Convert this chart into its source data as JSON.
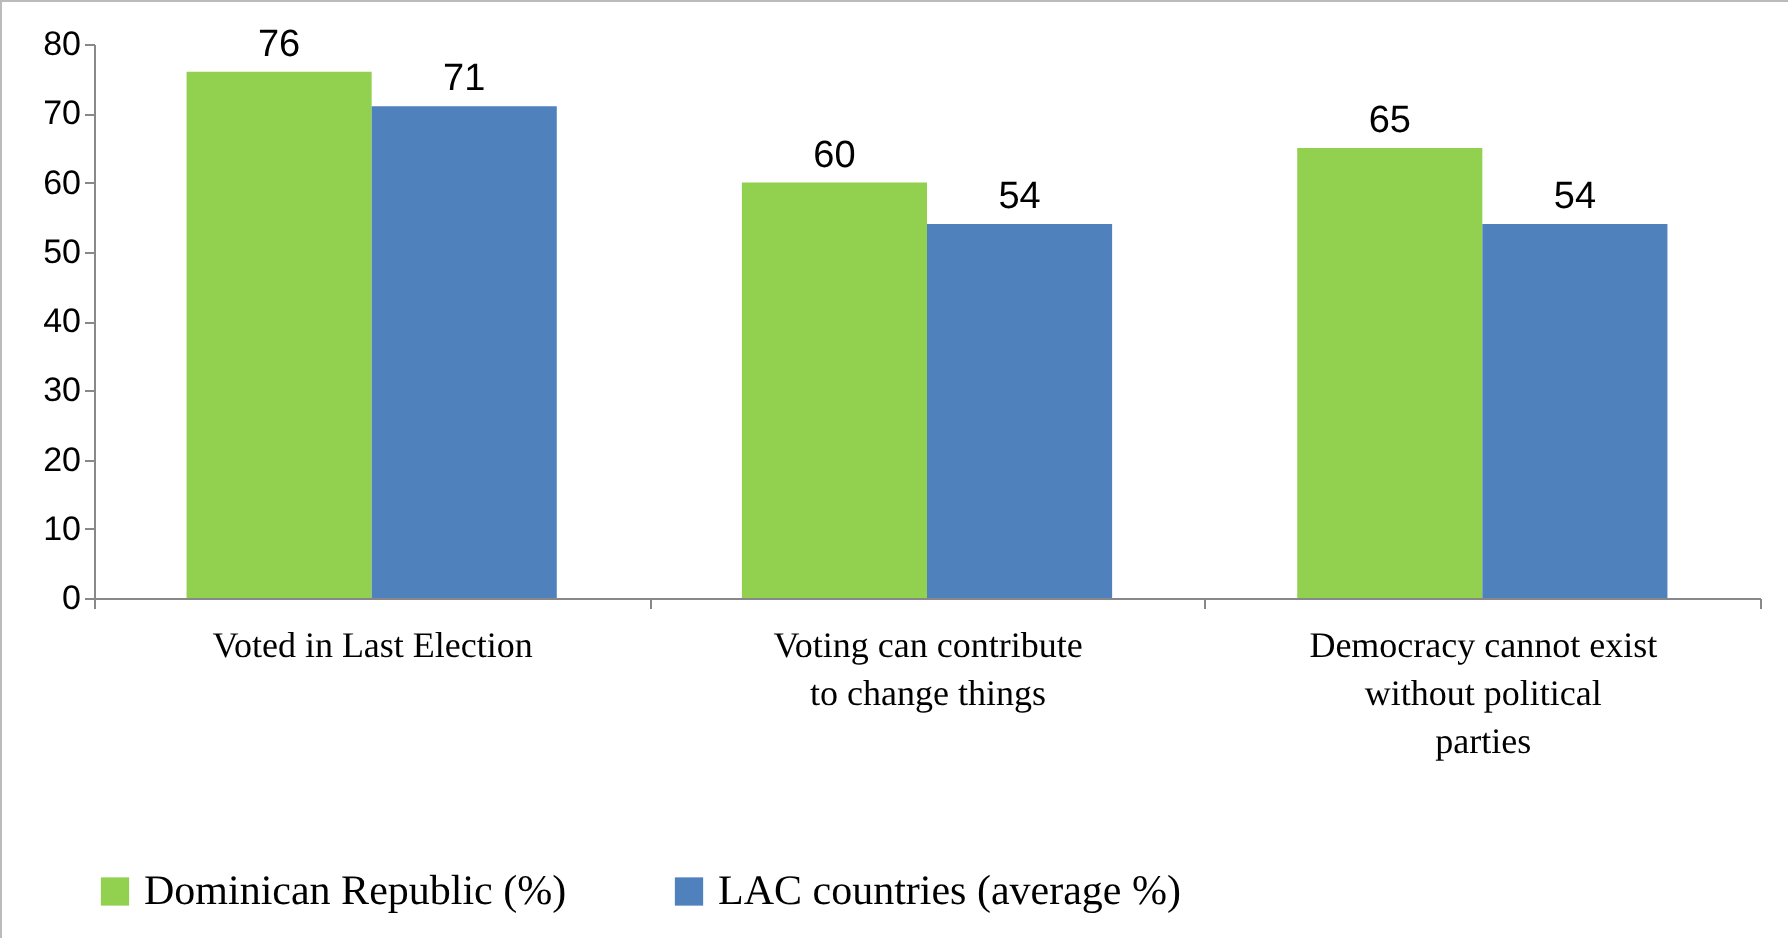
{
  "chart_data": {
    "type": "bar",
    "categories": [
      "Voted in Last Election",
      "Voting can contribute to change things",
      "Democracy cannot exist without political parties"
    ],
    "series": [
      {
        "name": "Dominican Republic (%)",
        "color": "#92d050",
        "values": [
          76,
          60,
          65
        ]
      },
      {
        "name": "LAC countries (average %)",
        "color": "#4f81bd",
        "values": [
          71,
          54,
          54
        ]
      }
    ],
    "ylim": [
      0,
      80
    ],
    "yticks": [
      0,
      10,
      20,
      30,
      40,
      50,
      60,
      70,
      80
    ],
    "grid": false,
    "legend": "bottom",
    "data_labels": true
  }
}
